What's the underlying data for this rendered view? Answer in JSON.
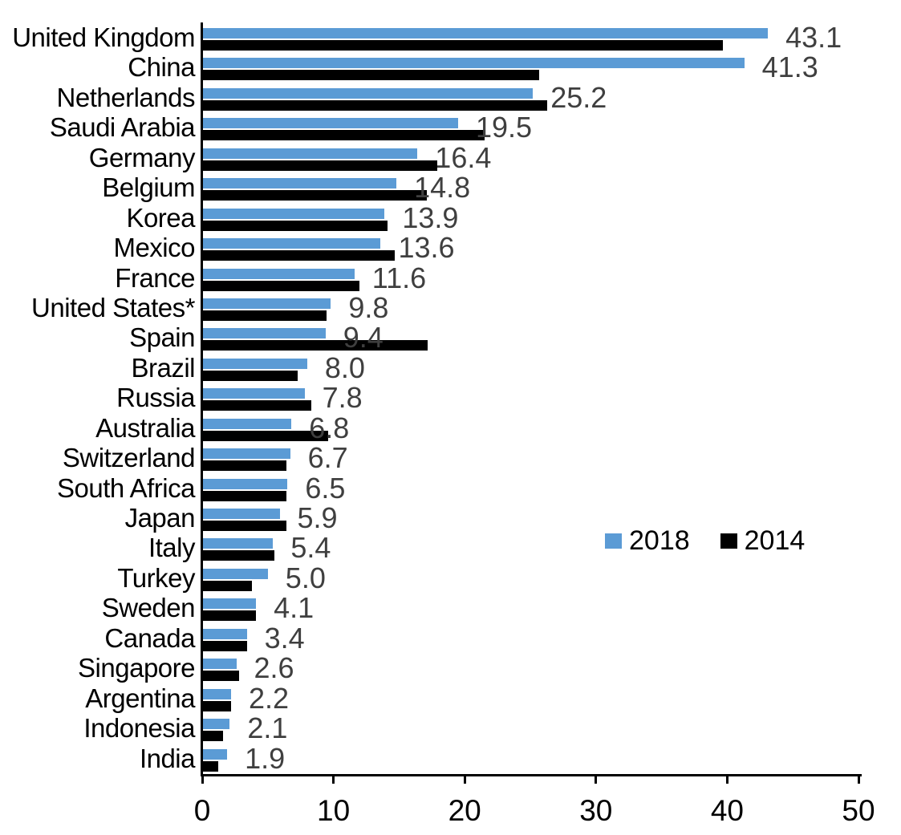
{
  "chart_data": {
    "type": "bar",
    "orientation": "horizontal",
    "title": "",
    "xlabel": "",
    "ylabel": "",
    "xlim": [
      0,
      50
    ],
    "x_ticks": [
      "0",
      "10",
      "20",
      "30",
      "40",
      "50"
    ],
    "grid": false,
    "legend_position": "middle-right",
    "categories": [
      "United Kingdom",
      "China",
      "Netherlands",
      "Saudi Arabia",
      "Germany",
      "Belgium",
      "Korea",
      "Mexico",
      "France",
      "United States*",
      "Spain",
      "Brazil",
      "Russia",
      "Australia",
      "Switzerland",
      "South Africa",
      "Japan",
      "Italy",
      "Turkey",
      "Sweden",
      "Canada",
      "Singapore",
      "Argentina",
      "Indonesia",
      "India"
    ],
    "series": [
      {
        "name": "2018",
        "color": "#5B9BD5",
        "values": [
          43.1,
          41.3,
          25.2,
          19.5,
          16.4,
          14.8,
          13.9,
          13.6,
          11.6,
          9.8,
          9.4,
          8.0,
          7.8,
          6.8,
          6.7,
          6.5,
          5.9,
          5.4,
          5.0,
          4.1,
          3.4,
          2.6,
          2.2,
          2.1,
          1.9
        ],
        "data_labels": [
          "43.1",
          "41.3",
          "25.2",
          "19.5",
          "16.4",
          "14.8",
          "13.9",
          "13.6",
          "11.6",
          "9.8",
          "9.4",
          "8.0",
          "7.8",
          "6.8",
          "6.7",
          "6.5",
          "5.9",
          "5.4",
          "5.0",
          "4.1",
          "3.4",
          "2.6",
          "2.2",
          "2.1",
          "1.9"
        ]
      },
      {
        "name": "2014",
        "color": "#000000",
        "values": [
          39.7,
          25.7,
          26.3,
          21.5,
          17.9,
          17.1,
          14.1,
          14.7,
          12.0,
          9.5,
          17.2,
          7.3,
          8.3,
          9.6,
          6.4,
          6.4,
          6.4,
          5.5,
          3.8,
          4.1,
          3.4,
          2.8,
          2.2,
          1.6,
          1.2
        ],
        "data_labels": []
      }
    ]
  },
  "legend": {
    "items": [
      {
        "label": "2018",
        "color": "#5B9BD5"
      },
      {
        "label": "2014",
        "color": "#000000"
      }
    ]
  },
  "colors": {
    "bar_2018": "#5B9BD5",
    "bar_2014": "#000000",
    "data_label": "#3F3F3F",
    "axis": "#000000",
    "background": "#ffffff"
  }
}
